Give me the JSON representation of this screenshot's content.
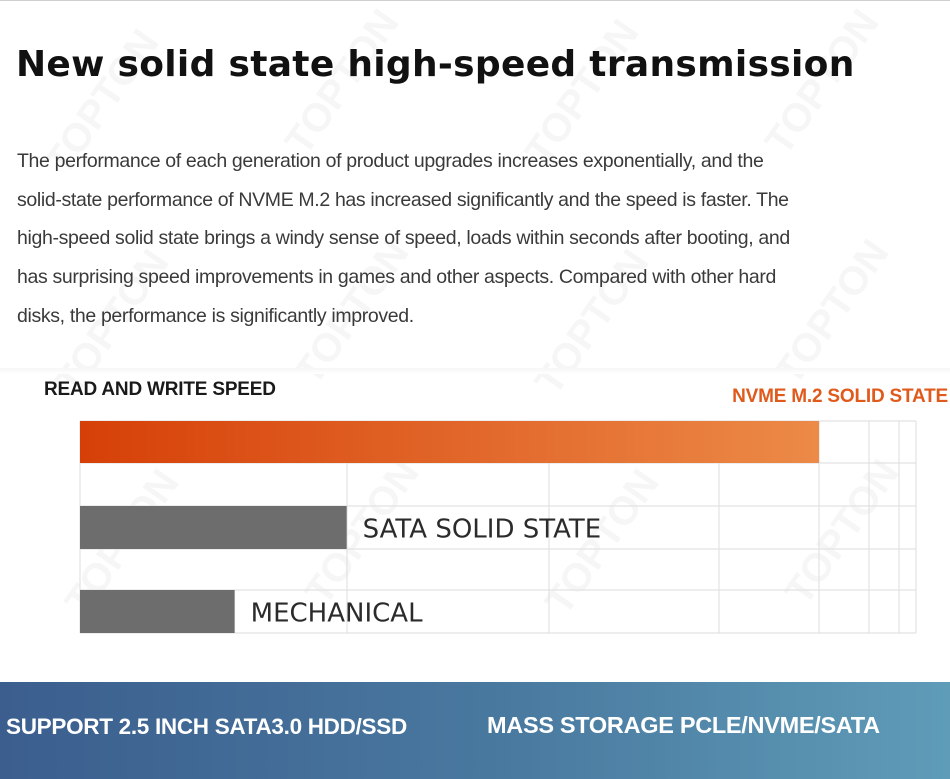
{
  "watermark": "TOPTON",
  "header": {
    "title": "New solid state high-speed transmission"
  },
  "description": {
    "lines": [
      "The performance of each generation of product upgrades increases exponentially, and the",
      "solid-state performance of NVME M.2 has increased significantly and the speed is faster. The",
      "high-speed solid state brings a windy sense of speed, loads within seconds after booting, and",
      "has surprising speed improvements in games and other aspects. Compared with other hard",
      "disks, the performance is significantly improved."
    ]
  },
  "chart_data": {
    "type": "bar",
    "orientation": "horizontal",
    "title": "READ AND WRITE SPEED",
    "xlabel": "",
    "ylabel": "",
    "grid": true,
    "xlim": [
      0,
      100
    ],
    "categories": [
      "NVME M.2 SOLID STATE",
      "SATA SOLID STATE",
      "MECHANICAL"
    ],
    "values": [
      88.4,
      31.9,
      18.5
    ],
    "value_units": "relative % of chart width (no numeric axis shown)",
    "colors": {
      "nvme_start": "#d64008",
      "nvme_end": "#ec8a48",
      "sata": "#6d6d6d",
      "mechanical": "#6d6d6d",
      "grid": "#e2e2e2",
      "nvme_label": "#e05a1c"
    }
  },
  "footer": {
    "left": "SUPPORT 2.5 INCH SATA3.0 HDD/SSD",
    "right": "MASS STORAGE PCLE/NVME/SATA"
  }
}
